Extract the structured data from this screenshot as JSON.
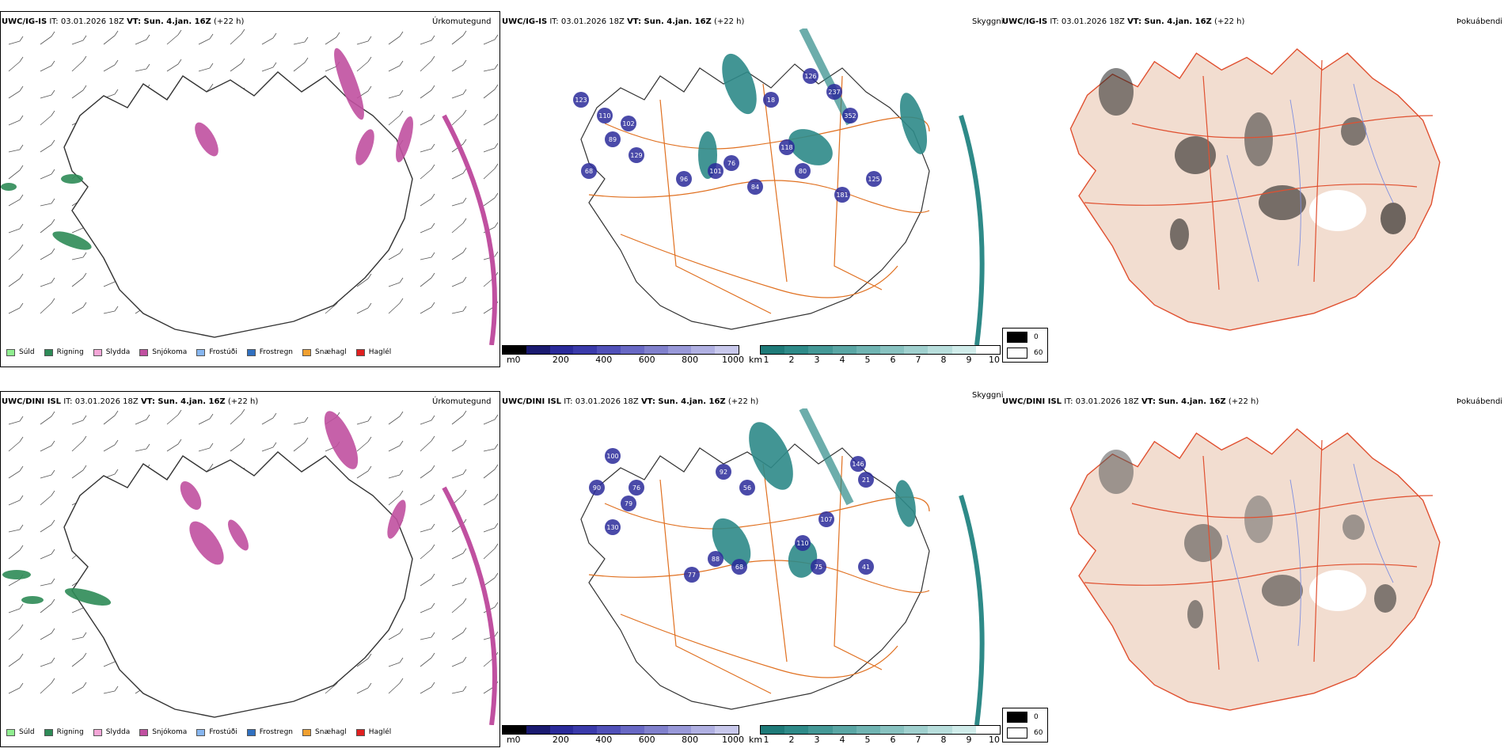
{
  "rows": [
    {
      "panels": [
        {
          "model": "UWC/IG-IS",
          "it": "IT: 03.01.2026 18Z",
          "vt": "VT: Sun. 4.jan. 16Z",
          "lead": "(+22 h)",
          "title": "Úrkomutegund"
        },
        {
          "model": "UWC/IG-IS",
          "it": "IT: 03.01.2026 18Z",
          "vt": "VT: Sun. 4.jan. 16Z",
          "lead": "(+22 h)",
          "title": "Skyggni"
        },
        {
          "model": "UWC/IG-IS",
          "it": "IT: 03.01.2026 18Z",
          "vt": "VT: Sun. 4.jan. 16Z",
          "lead": "(+22 h)",
          "title": "Þokuábendi"
        }
      ],
      "cloud_labels": [
        "123",
        "110",
        "102",
        "89",
        "129",
        "68",
        "101",
        "96",
        "76",
        "84",
        "118",
        "80",
        "18",
        "126",
        "237",
        "352",
        "125",
        "181"
      ]
    },
    {
      "panels": [
        {
          "model": "UWC/DINI ISL",
          "it": "IT: 03.01.2026 18Z",
          "vt": "VT: Sun. 4.jan. 16Z",
          "lead": "(+22 h)",
          "title": "Úrkomutegund"
        },
        {
          "model": "UWC/DINI ISL",
          "it": "IT: 03.01.2026 18Z",
          "vt": "VT: Sun. 4.jan. 16Z",
          "lead": "(+22 h)",
          "title": "Skyggni"
        },
        {
          "model": "UWC/DINI ISL",
          "it": "IT: 03.01.2026 18Z",
          "vt": "VT: Sun. 4.jan. 16Z",
          "lead": "(+22 h)",
          "title": "Þokuábendi"
        }
      ],
      "cloud_labels": [
        "100",
        "90",
        "76",
        "79",
        "130",
        "92",
        "56",
        "88",
        "77",
        "68",
        "110",
        "107",
        "75",
        "21",
        "146",
        "41"
      ]
    }
  ],
  "precip_legend": [
    {
      "label": "Súld",
      "color": "#90ee90"
    },
    {
      "label": "Rigning",
      "color": "#2e8b57"
    },
    {
      "label": "Slydda",
      "color": "#f4a6d7"
    },
    {
      "label": "Snjókoma",
      "color": "#c050a0"
    },
    {
      "label": "Frostúði",
      "color": "#87b6f0"
    },
    {
      "label": "Frostregn",
      "color": "#3070c0"
    },
    {
      "label": "Snæhagl",
      "color": "#f0a030"
    },
    {
      "label": "Haglél",
      "color": "#e02020"
    }
  ],
  "cloud_base_bar": {
    "unit": "m",
    "ticks": [
      "0",
      "200",
      "400",
      "600",
      "800",
      "1000"
    ],
    "colors": [
      "#000000",
      "#1a1a70",
      "#2a2a9a",
      "#3a3aaa",
      "#5050b8",
      "#6868c4",
      "#8080cc",
      "#9898d8",
      "#b0b0e2",
      "#c8c8ec"
    ]
  },
  "visibility_bar": {
    "unit": "km",
    "ticks": [
      "1",
      "2",
      "3",
      "4",
      "5",
      "6",
      "7",
      "8",
      "9",
      "10"
    ],
    "colors": [
      "#1e7a78",
      "#2e8a88",
      "#449896",
      "#5aa6a4",
      "#70b4b2",
      "#88c2c0",
      "#a0d0ce",
      "#b8dedc",
      "#d0ecea",
      "#ffffff"
    ]
  },
  "fog_legend": [
    {
      "label": "0",
      "color": "#000000"
    },
    {
      "label": "60",
      "color": "#ffffff"
    }
  ],
  "colors": {
    "coast": "#333333",
    "roads": "#e07020",
    "fog_land": "#f2ddd0",
    "fog_roads": "#e05030",
    "rivers": "#8090e0",
    "snow": "#c050a0",
    "rain": "#2e8b57",
    "visibility": "#2e8a88",
    "cloudbase": "#2a2a9a"
  }
}
